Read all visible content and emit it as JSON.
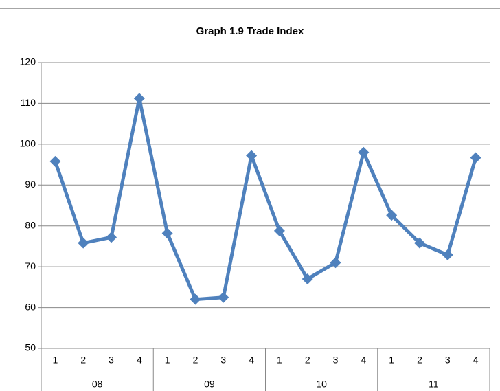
{
  "chart_data": {
    "type": "line",
    "title": "Graph 1.9 Trade Index",
    "categories": [
      "1",
      "2",
      "3",
      "4",
      "1",
      "2",
      "3",
      "4",
      "1",
      "2",
      "3",
      "4",
      "1",
      "2",
      "3",
      "4"
    ],
    "groups": [
      "08",
      "09",
      "10",
      "11"
    ],
    "series": [
      {
        "name": "Trade Index",
        "color": "#4f81bd",
        "values": [
          95.8,
          75.8,
          77.2,
          111.2,
          78.2,
          62.0,
          62.5,
          97.2,
          78.8,
          67.0,
          71.0,
          98.0,
          82.6,
          75.8,
          72.9,
          96.7
        ]
      }
    ],
    "ylim": [
      50,
      120
    ],
    "yticks": [
      50,
      60,
      70,
      80,
      90,
      100,
      110,
      120
    ],
    "grid": true
  }
}
